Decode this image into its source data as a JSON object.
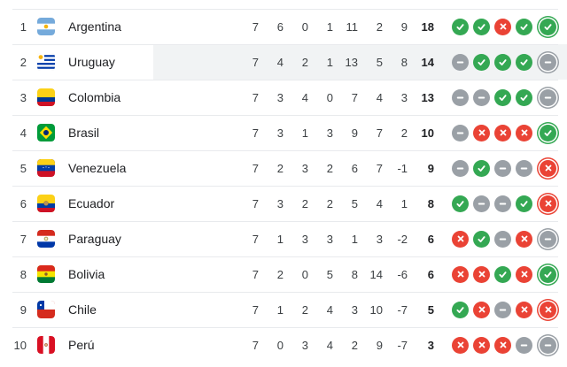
{
  "colors": {
    "win": "#34a853",
    "loss": "#ea4335",
    "draw": "#9aa0a6",
    "row_highlight": "#f1f3f4",
    "divider": "#e8eaed"
  },
  "form_icon_meaning": {
    "W": "win-check-icon",
    "L": "loss-x-icon",
    "D": "draw-dash-icon"
  },
  "standings": {
    "rows": [
      {
        "position": "1",
        "team": "Argentina",
        "flag": "argentina",
        "stats": {
          "mp": "7",
          "w": "6",
          "d": "0",
          "l": "1",
          "gf": "11",
          "ga": "2",
          "gd": "9"
        },
        "points": "18",
        "form": [
          "W",
          "W",
          "L",
          "W",
          "W"
        ],
        "highlighted": false
      },
      {
        "position": "2",
        "team": "Uruguay",
        "flag": "uruguay",
        "stats": {
          "mp": "7",
          "w": "4",
          "d": "2",
          "l": "1",
          "gf": "13",
          "ga": "5",
          "gd": "8"
        },
        "points": "14",
        "form": [
          "D",
          "W",
          "W",
          "W",
          "D"
        ],
        "highlighted": true
      },
      {
        "position": "3",
        "team": "Colombia",
        "flag": "colombia",
        "stats": {
          "mp": "7",
          "w": "3",
          "d": "4",
          "l": "0",
          "gf": "7",
          "ga": "4",
          "gd": "3"
        },
        "points": "13",
        "form": [
          "D",
          "D",
          "W",
          "W",
          "D"
        ],
        "highlighted": false
      },
      {
        "position": "4",
        "team": "Brasil",
        "flag": "brasil",
        "stats": {
          "mp": "7",
          "w": "3",
          "d": "1",
          "l": "3",
          "gf": "9",
          "ga": "7",
          "gd": "2"
        },
        "points": "10",
        "form": [
          "D",
          "L",
          "L",
          "L",
          "W"
        ],
        "highlighted": false
      },
      {
        "position": "5",
        "team": "Venezuela",
        "flag": "venezuela",
        "stats": {
          "mp": "7",
          "w": "2",
          "d": "3",
          "l": "2",
          "gf": "6",
          "ga": "7",
          "gd": "-1"
        },
        "points": "9",
        "form": [
          "D",
          "W",
          "D",
          "D",
          "L"
        ],
        "highlighted": false
      },
      {
        "position": "6",
        "team": "Ecuador",
        "flag": "ecuador",
        "stats": {
          "mp": "7",
          "w": "3",
          "d": "2",
          "l": "2",
          "gf": "5",
          "ga": "4",
          "gd": "1"
        },
        "points": "8",
        "form": [
          "W",
          "D",
          "D",
          "W",
          "L"
        ],
        "highlighted": false
      },
      {
        "position": "7",
        "team": "Paraguay",
        "flag": "paraguay",
        "stats": {
          "mp": "7",
          "w": "1",
          "d": "3",
          "l": "3",
          "gf": "1",
          "ga": "3",
          "gd": "-2"
        },
        "points": "6",
        "form": [
          "L",
          "W",
          "D",
          "L",
          "D"
        ],
        "highlighted": false
      },
      {
        "position": "8",
        "team": "Bolivia",
        "flag": "bolivia",
        "stats": {
          "mp": "7",
          "w": "2",
          "d": "0",
          "l": "5",
          "gf": "8",
          "ga": "14",
          "gd": "-6"
        },
        "points": "6",
        "form": [
          "L",
          "L",
          "W",
          "L",
          "W"
        ],
        "highlighted": false
      },
      {
        "position": "9",
        "team": "Chile",
        "flag": "chile",
        "stats": {
          "mp": "7",
          "w": "1",
          "d": "2",
          "l": "4",
          "gf": "3",
          "ga": "10",
          "gd": "-7"
        },
        "points": "5",
        "form": [
          "W",
          "L",
          "D",
          "L",
          "L"
        ],
        "highlighted": false
      },
      {
        "position": "10",
        "team": "Perú",
        "flag": "peru",
        "stats": {
          "mp": "7",
          "w": "0",
          "d": "3",
          "l": "4",
          "gf": "2",
          "ga": "9",
          "gd": "-7"
        },
        "points": "3",
        "form": [
          "L",
          "L",
          "L",
          "D",
          "D"
        ],
        "highlighted": false
      }
    ]
  }
}
